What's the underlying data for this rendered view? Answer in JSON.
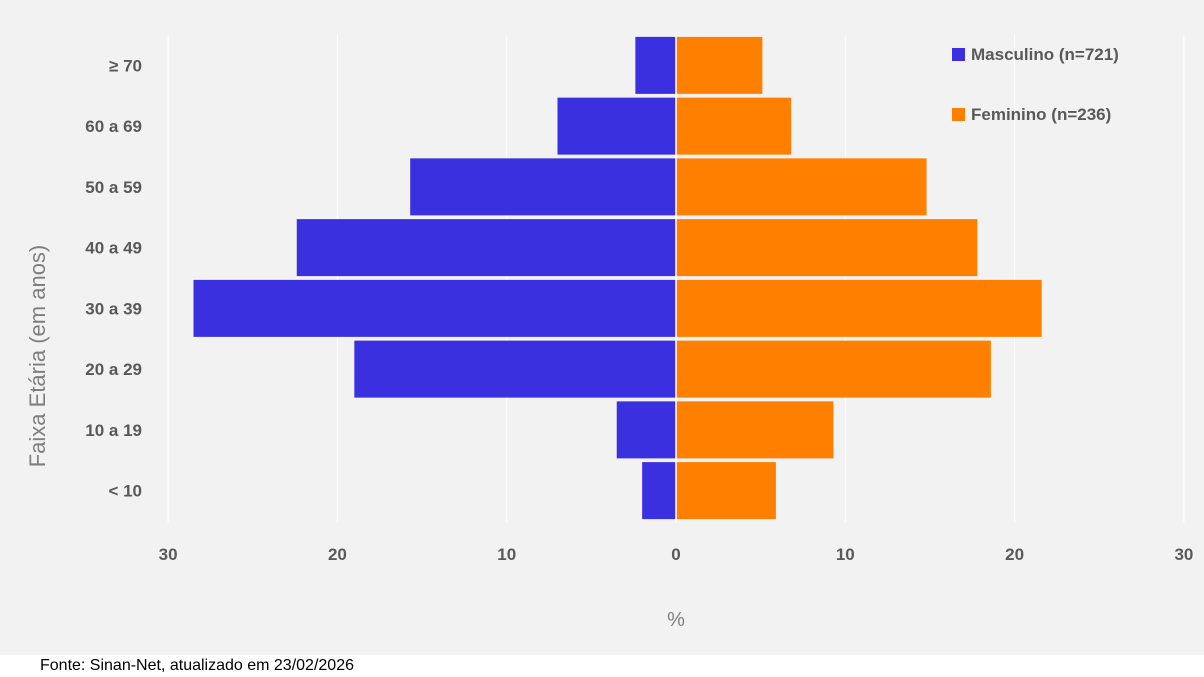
{
  "chart_data": {
    "type": "bar",
    "orientation": "horizontal",
    "subtype": "population-pyramid",
    "categories": [
      "≥ 70",
      "60 a 69",
      "50 a 59",
      "40 a 49",
      "30 a 39",
      "20 a 29",
      "10 a 19",
      "< 10"
    ],
    "series": [
      {
        "name": "Masculino (n=721)",
        "color": "#3a30e0",
        "values": [
          2.4,
          7.0,
          15.7,
          22.4,
          28.5,
          19.0,
          3.5,
          2.0
        ]
      },
      {
        "name": "Feminino (n=236)",
        "color": "#ff8000",
        "values": [
          5.1,
          6.8,
          14.8,
          17.8,
          21.6,
          18.6,
          9.3,
          5.9
        ]
      }
    ],
    "xlabel": "%",
    "ylabel": "Faixa Etária (em anos)",
    "xlim": [
      -30,
      30
    ],
    "xticks": [
      -30,
      -20,
      -10,
      0,
      10,
      20,
      30
    ],
    "xtick_labels": [
      "30",
      "20",
      "10",
      "0",
      "10",
      "20",
      "30"
    ],
    "grid": "vertical",
    "legend_position": "top-right"
  },
  "source": "Fonte: Sinan-Net, atualizado em 23/02/2026"
}
